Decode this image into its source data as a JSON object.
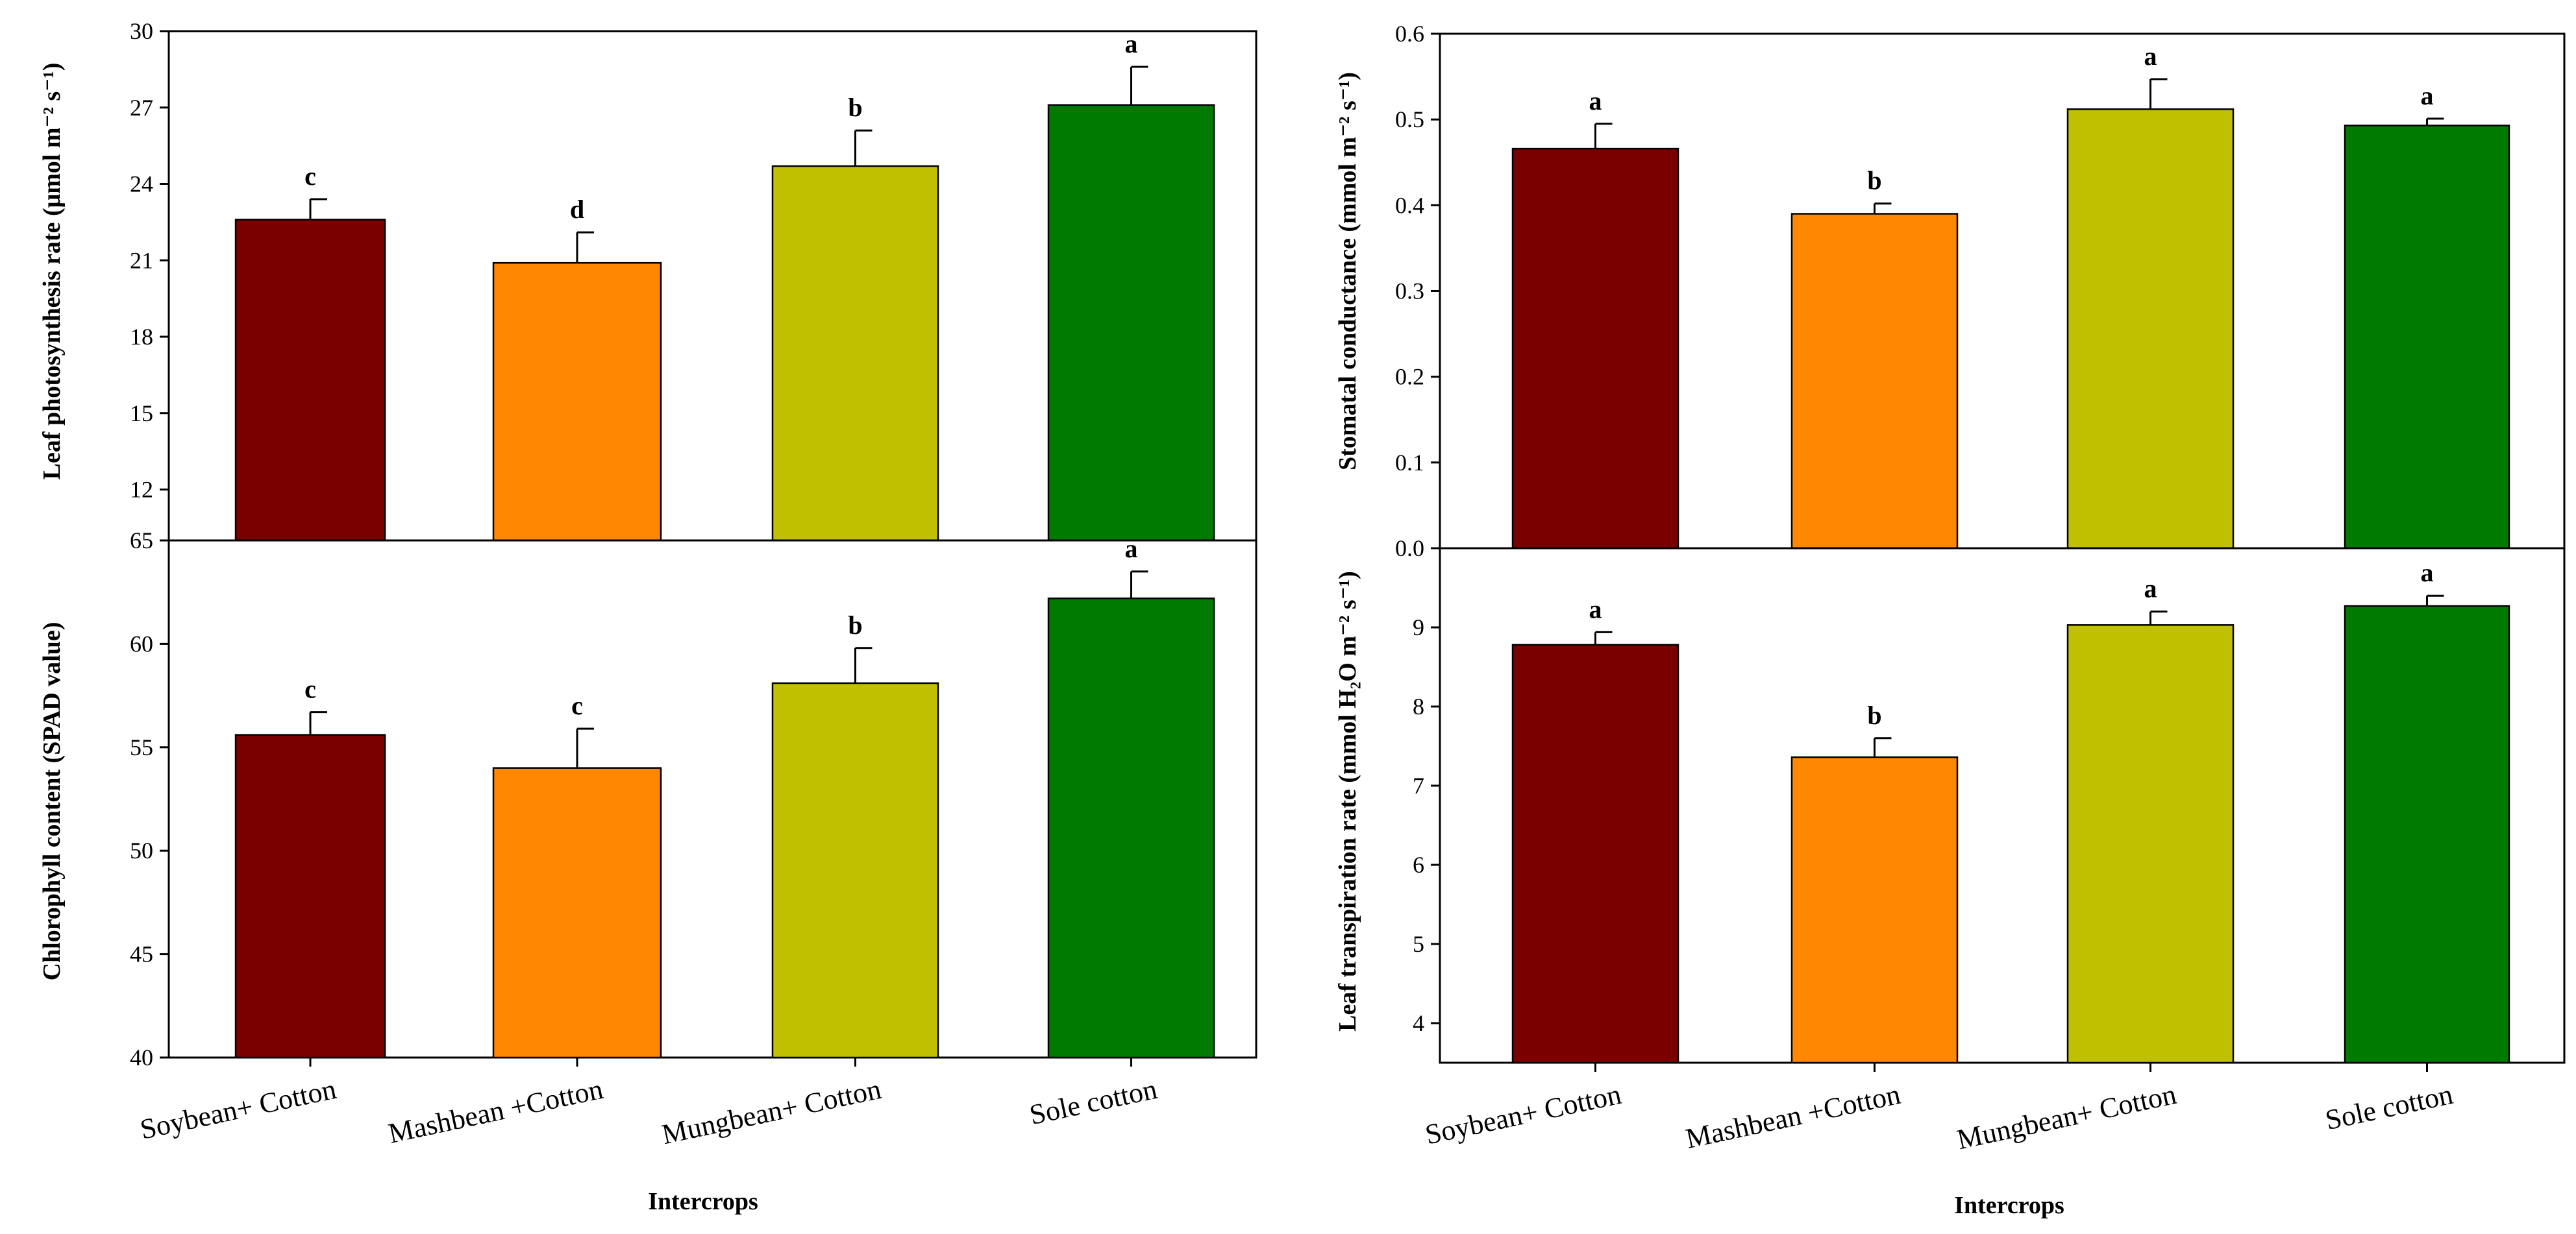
{
  "figure": {
    "x_title": "Intercrops",
    "categories": [
      "Soybean+ Cotton",
      "Mashbean +Cotton",
      "Mungbean+ Cotton",
      "Sole cotton"
    ],
    "colors": [
      "#7A0000",
      "#FF8800",
      "#C0C000",
      "#007A00"
    ]
  },
  "chart_data": [
    {
      "type": "bar",
      "panel": "top-left",
      "ylabel": "Leaf photosynthesis rate (μmol m⁻² s⁻¹)",
      "ylim": [
        10,
        30
      ],
      "yticks": [
        12,
        15,
        18,
        21,
        24,
        27,
        30
      ],
      "categories": [
        "Soybean+ Cotton",
        "Mashbean +Cotton",
        "Mungbean+ Cotton",
        "Sole cotton"
      ],
      "values": [
        22.6,
        20.9,
        24.7,
        27.1
      ],
      "errors": [
        0.8,
        1.2,
        1.4,
        1.5
      ],
      "letters": [
        "c",
        "d",
        "b",
        "a"
      ]
    },
    {
      "type": "bar",
      "panel": "bottom-left",
      "ylabel": "Chlorophyll content (SPAD value)",
      "ylim": [
        40,
        65
      ],
      "yticks": [
        40,
        45,
        50,
        55,
        60,
        65
      ],
      "categories": [
        "Soybean+ Cotton",
        "Mashbean +Cotton",
        "Mungbean+ Cotton",
        "Sole cotton"
      ],
      "values": [
        55.6,
        54.0,
        58.1,
        62.2
      ],
      "errors": [
        1.1,
        1.9,
        1.7,
        1.3
      ],
      "letters": [
        "c",
        "c",
        "b",
        "a"
      ]
    },
    {
      "type": "bar",
      "panel": "top-right",
      "ylabel": "Stomatal conductance (mmol m⁻² s⁻¹)",
      "ylim": [
        0,
        0.6
      ],
      "yticks": [
        "0.0",
        "0.1",
        "0.2",
        "0.3",
        "0.4",
        "0.5",
        "0.6"
      ],
      "categories": [
        "Soybean+ Cotton",
        "Mashbean +Cotton",
        "Mungbean+ Cotton",
        "Sole cotton"
      ],
      "values": [
        0.466,
        0.39,
        0.512,
        0.493
      ],
      "errors": [
        0.029,
        0.012,
        0.035,
        0.008
      ],
      "letters": [
        "a",
        "b",
        "a",
        "a"
      ]
    },
    {
      "type": "bar",
      "panel": "bottom-right",
      "ylabel": "Leaf transpiration rate (mmol H₂O m⁻² s⁻¹)",
      "ylim": [
        3.5,
        10
      ],
      "yticks": [
        4,
        5,
        6,
        7,
        8,
        9
      ],
      "categories": [
        "Soybean+ Cotton",
        "Mashbean +Cotton",
        "Mungbean+ Cotton",
        "Sole cotton"
      ],
      "values": [
        8.78,
        7.36,
        9.03,
        9.27
      ],
      "errors": [
        0.16,
        0.24,
        0.17,
        0.13
      ],
      "letters": [
        "a",
        "b",
        "a",
        "a"
      ]
    }
  ]
}
